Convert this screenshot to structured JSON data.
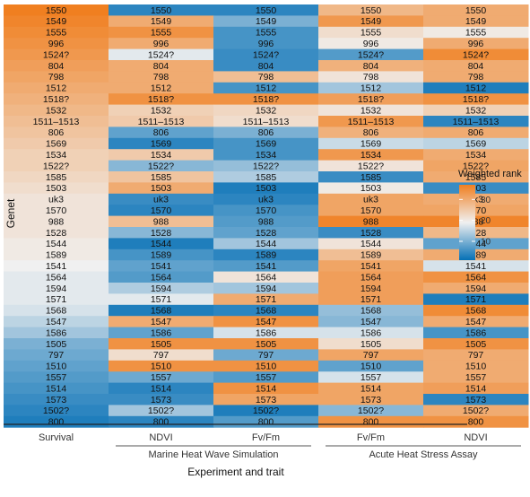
{
  "chart_data": {
    "type": "heatmap",
    "ylabel": "Genet",
    "xlabel": "Experiment and trait",
    "legend": {
      "title": "Weighted rank",
      "position": "right",
      "ticks": [
        10,
        20,
        30
      ],
      "range": [
        1,
        37
      ],
      "colors": {
        "low": "#0570b6",
        "mid": "#f0f0f0",
        "high": "#f07f20"
      }
    },
    "columns": [
      {
        "label": "Survival",
        "group": ""
      },
      {
        "label": "NDVI",
        "group": "Marine Heat Wave Simulation"
      },
      {
        "label": "Fv/Fm",
        "group": "Marine Heat Wave Simulation"
      },
      {
        "label": "Fv/Fm",
        "group": "Acute Heat Stress Assay"
      },
      {
        "label": "NDVI",
        "group": "Acute Heat Stress Assay"
      }
    ],
    "groups": [
      "Marine Heat Wave Simulation",
      "Acute Heat Stress Assay"
    ],
    "rows": [
      "1550",
      "1549",
      "1555",
      "996",
      "1524?",
      "804",
      "798",
      "1512",
      "1518?",
      "1532",
      "1511–1513",
      "806",
      "1569",
      "1534",
      "1522?",
      "1585",
      "1503",
      "uk3",
      "1570",
      "988",
      "1528",
      "1544",
      "1589",
      "1541",
      "1564",
      "1594",
      "1571",
      "1568",
      "1547",
      "1586",
      "1505",
      "797",
      "1510",
      "1557",
      "1514",
      "1573",
      "1502?",
      "800"
    ],
    "values": [
      [
        37,
        4,
        4,
        28,
        30
      ],
      [
        36,
        30,
        10,
        33,
        30
      ],
      [
        35,
        34,
        6,
        22,
        20
      ],
      [
        34,
        30,
        6,
        20,
        30
      ],
      [
        33,
        18,
        5,
        7,
        35
      ],
      [
        32,
        30,
        5,
        29,
        30
      ],
      [
        31,
        30,
        27,
        21,
        30
      ],
      [
        30,
        30,
        6,
        13,
        3
      ],
      [
        29,
        34,
        34,
        32,
        34
      ],
      [
        28,
        24,
        23,
        21,
        24
      ],
      [
        27,
        25,
        22,
        33,
        4
      ],
      [
        26,
        8,
        10,
        29,
        30
      ],
      [
        25,
        4,
        6,
        16,
        15
      ],
      [
        24,
        25,
        6,
        33,
        30
      ],
      [
        24,
        11,
        12,
        21,
        31
      ],
      [
        23,
        26,
        14,
        5,
        30
      ],
      [
        22,
        30,
        3,
        20,
        5
      ],
      [
        21,
        5,
        4,
        31,
        30
      ],
      [
        21,
        4,
        6,
        31,
        31
      ],
      [
        21,
        27,
        7,
        36,
        36
      ],
      [
        21,
        11,
        8,
        5,
        28
      ],
      [
        20,
        3,
        13,
        21,
        8
      ],
      [
        20,
        6,
        4,
        27,
        30
      ],
      [
        19,
        8,
        7,
        31,
        17
      ],
      [
        18,
        7,
        21,
        32,
        34
      ],
      [
        18,
        14,
        13,
        32,
        30
      ],
      [
        18,
        18,
        30,
        32,
        3
      ],
      [
        17,
        3,
        4,
        12,
        35
      ],
      [
        15,
        30,
        34,
        11,
        30
      ],
      [
        13,
        8,
        17,
        17,
        6
      ],
      [
        10,
        34,
        34,
        22,
        34
      ],
      [
        9,
        22,
        9,
        31,
        30
      ],
      [
        8,
        34,
        34,
        8,
        30
      ],
      [
        7,
        9,
        7,
        17,
        30
      ],
      [
        6,
        4,
        34,
        31,
        32
      ],
      [
        5,
        5,
        31,
        31,
        4
      ],
      [
        4,
        13,
        3,
        11,
        30
      ],
      [
        3,
        4,
        7,
        34,
        34
      ]
    ]
  }
}
